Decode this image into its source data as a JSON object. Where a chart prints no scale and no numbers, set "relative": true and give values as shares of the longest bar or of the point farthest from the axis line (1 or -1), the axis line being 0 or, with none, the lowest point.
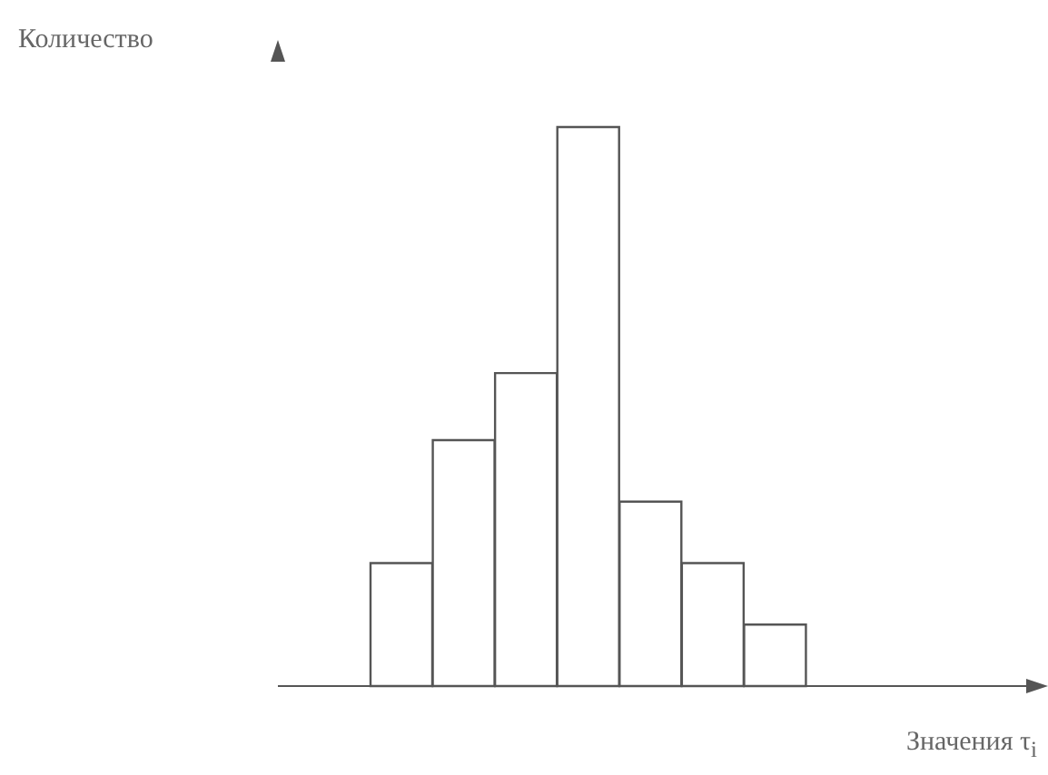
{
  "chart_data": {
    "type": "bar",
    "relative": true,
    "annotations": [
      "Количество"
    ],
    "xlabel": "Значения τ$_{i}$",
    "categories": [
      null,
      null,
      null,
      null,
      null,
      null,
      null
    ],
    "values": [
      0.22,
      0.44,
      0.56,
      1,
      0.33,
      0.22,
      0.11
    ],
    "color": "#ffffff"
  }
}
